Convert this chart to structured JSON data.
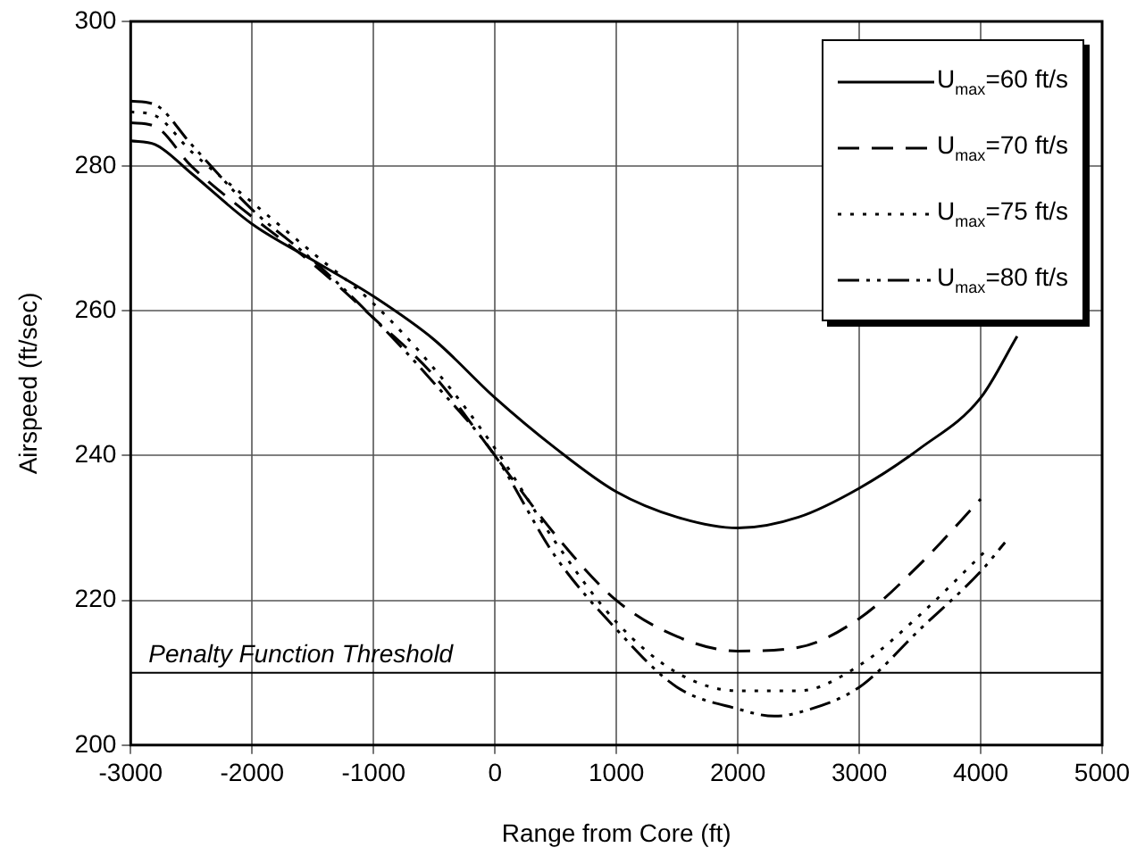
{
  "chart_data": {
    "type": "line",
    "xlabel": "Range from Core (ft)",
    "ylabel": "Airspeed (ft/sec)",
    "xlim": [
      -3000,
      5000
    ],
    "xticks": [
      -3000,
      -2000,
      -1000,
      0,
      1000,
      2000,
      3000,
      4000,
      5000
    ],
    "ylim": [
      200,
      300
    ],
    "yticks": [
      200,
      220,
      240,
      260,
      280,
      300
    ],
    "grid": true,
    "legend": "top right",
    "marker": "none",
    "series": [
      {
        "name": "U$_{max}$=60 ft/s",
        "color": "#000000",
        "line_style": "solid",
        "x": [
          -3000,
          -2800,
          -2500,
          -2000,
          -1500,
          -1000,
          -500,
          0,
          500,
          1000,
          1500,
          2000,
          2500,
          3000,
          3500,
          4000,
          4300
        ],
        "values": [
          283.5,
          283,
          279,
          272,
          267,
          262,
          256,
          248,
          241,
          235,
          231.5,
          230,
          231.5,
          235.5,
          241,
          248,
          256.5
        ]
      },
      {
        "name": "U$_{max}$=70 ft/s",
        "color": "#000000",
        "line_style": "dashed",
        "x": [
          -3000,
          -2800,
          -2500,
          -2000,
          -1500,
          -1000,
          -500,
          0,
          500,
          1000,
          1500,
          2000,
          2500,
          3000,
          3500,
          4000
        ],
        "values": [
          286,
          285.5,
          280,
          273,
          266.5,
          259,
          251,
          240,
          229,
          220,
          215,
          213,
          213.5,
          217.5,
          225,
          234
        ]
      },
      {
        "name": "U$_{max}$=75 ft/s",
        "color": "#000000",
        "line_style": "dotted",
        "x": [
          -3000,
          -2800,
          -2500,
          -2000,
          -1500,
          -1000,
          -500,
          0,
          500,
          1000,
          1500,
          2000,
          2500,
          3000,
          3500,
          4050
        ],
        "values": [
          287.5,
          287,
          282,
          275,
          268,
          261,
          252,
          241,
          228,
          217,
          210,
          207.5,
          207.5,
          211,
          218,
          227
        ]
      },
      {
        "name": "U$_{max}$=80 ft/s",
        "color": "#000000",
        "line_style": "dashdot",
        "x": [
          -3000,
          -2800,
          -2500,
          -2000,
          -1500,
          -1000,
          -500,
          0,
          500,
          1000,
          1500,
          2000,
          2300,
          2500,
          3000,
          3500,
          4000,
          4200
        ],
        "values": [
          289,
          288.5,
          283,
          274,
          267,
          259,
          250,
          240,
          226,
          216,
          208,
          205,
          204,
          204.5,
          208,
          216,
          224,
          228
        ]
      }
    ],
    "ref_lines": [
      {
        "axis": "y",
        "value": 210,
        "label": "Penalty Function Threshold",
        "color": "#000000"
      }
    ]
  }
}
